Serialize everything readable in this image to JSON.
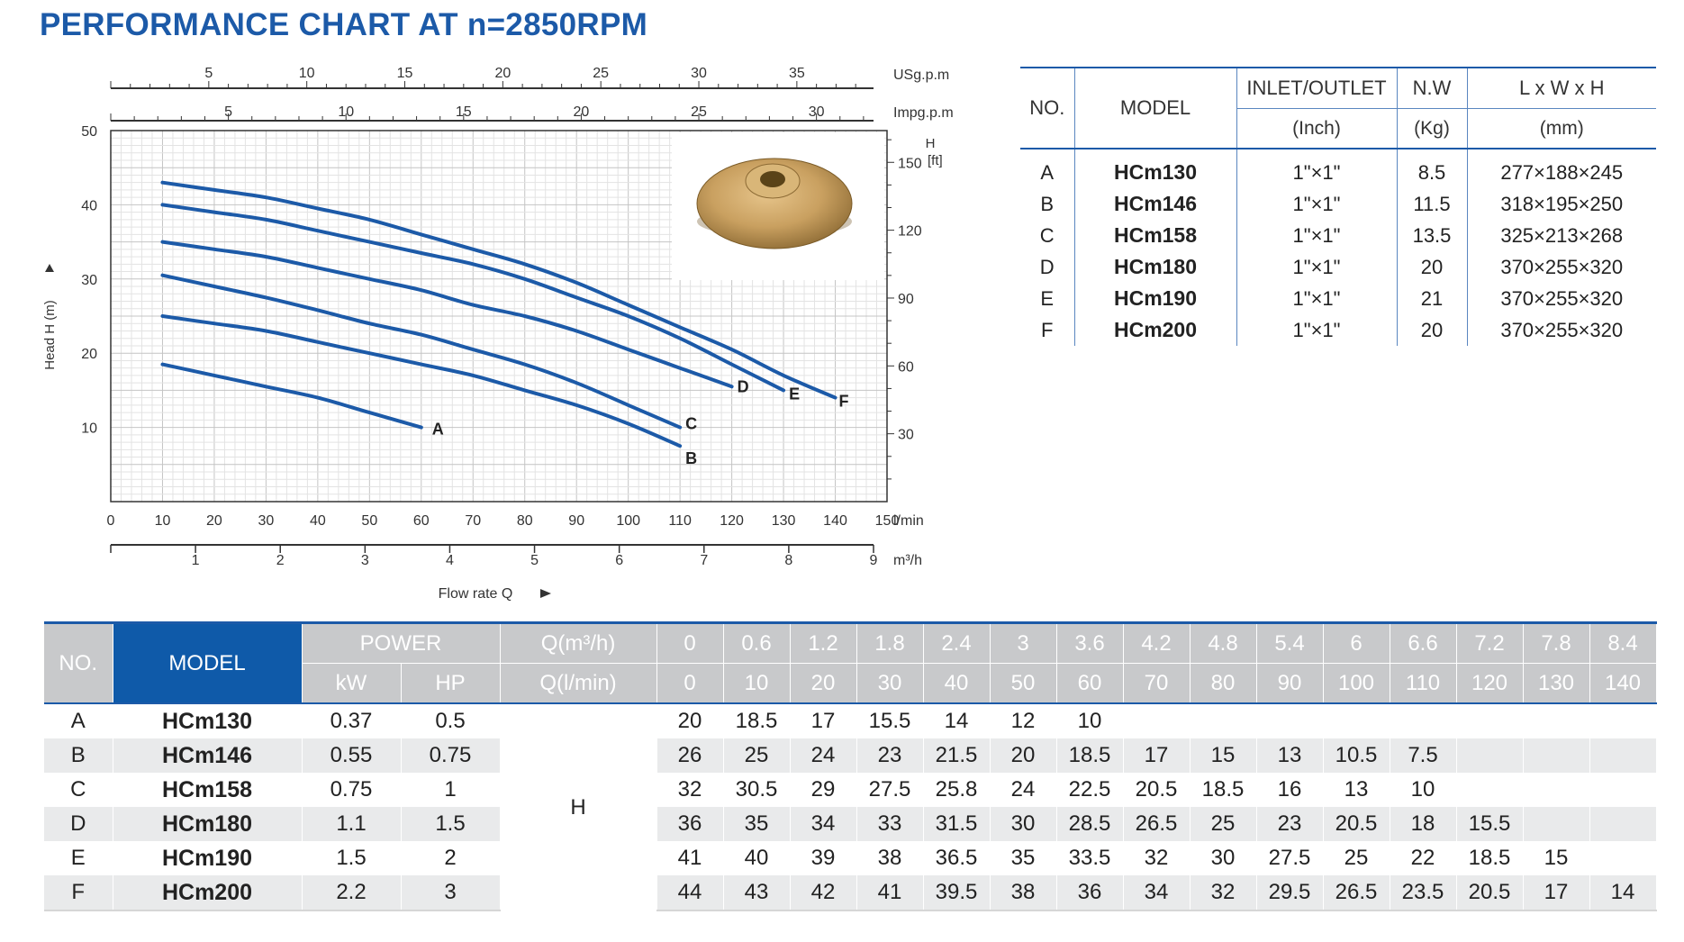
{
  "page_title": "PERFORMANCE CHART AT n=2850RPM",
  "chart_data": {
    "type": "line",
    "x_unit": "l/min",
    "xlim": [
      0,
      150
    ],
    "ylim": [
      0,
      50
    ],
    "x_ticks": [
      "0",
      "10",
      "20",
      "30",
      "40",
      "50",
      "60",
      "70",
      "80",
      "90",
      "100",
      "110",
      "120",
      "130",
      "140",
      "150"
    ],
    "y_ticks": [
      "10",
      "20",
      "30",
      "40",
      "50"
    ],
    "ylabel": "Head H (m)",
    "xlabel": "Flow rate Q",
    "right_axis_title": "H",
    "right_axis_unit": "[ft]",
    "right_ticks": [
      "30",
      "60",
      "90",
      "120",
      "150"
    ],
    "top_axis_us": {
      "unit": "USg.p.m",
      "ticks": [
        "5",
        "10",
        "15",
        "20",
        "25",
        "30",
        "35"
      ]
    },
    "top_axis_imp": {
      "unit": "Impg.p.m",
      "ticks": [
        "5",
        "10",
        "15",
        "20",
        "25",
        "30"
      ]
    },
    "bottom_axis_m3": {
      "unit": "m³/h",
      "ticks": [
        "1",
        "2",
        "3",
        "4",
        "5",
        "6",
        "7",
        "8",
        "9"
      ]
    },
    "curve_color": "#1c5aa8",
    "series": [
      {
        "name": "A",
        "x": [
          10,
          20,
          30,
          40,
          50,
          60
        ],
        "y": [
          18.5,
          17,
          15.5,
          14,
          12,
          10
        ]
      },
      {
        "name": "B",
        "x": [
          10,
          20,
          30,
          40,
          50,
          60,
          70,
          80,
          90,
          100,
          110
        ],
        "y": [
          25,
          24,
          23,
          21.5,
          20,
          18.5,
          17,
          15,
          13,
          10.5,
          7.5
        ]
      },
      {
        "name": "C",
        "x": [
          10,
          20,
          30,
          40,
          50,
          60,
          70,
          80,
          90,
          100,
          110
        ],
        "y": [
          30.5,
          29,
          27.5,
          25.8,
          24,
          22.5,
          20.5,
          18.5,
          16,
          13,
          10
        ]
      },
      {
        "name": "D",
        "x": [
          10,
          20,
          30,
          40,
          50,
          60,
          70,
          80,
          90,
          100,
          110,
          120
        ],
        "y": [
          35,
          34,
          33,
          31.5,
          30,
          28.5,
          26.5,
          25,
          23,
          20.5,
          18,
          15.5
        ]
      },
      {
        "name": "E",
        "x": [
          10,
          20,
          30,
          40,
          50,
          60,
          70,
          80,
          90,
          100,
          110,
          120,
          130
        ],
        "y": [
          40,
          39,
          38,
          36.5,
          35,
          33.5,
          32,
          30,
          27.5,
          25,
          22,
          18.5,
          15
        ]
      },
      {
        "name": "F",
        "x": [
          10,
          20,
          30,
          40,
          50,
          60,
          70,
          80,
          90,
          100,
          110,
          120,
          130,
          140
        ],
        "y": [
          43,
          42,
          41,
          39.5,
          38,
          36,
          34,
          32,
          29.5,
          26.5,
          23.5,
          20.5,
          17,
          14
        ]
      }
    ]
  },
  "spec_table": {
    "headers": {
      "no": "NO.",
      "model": "MODEL",
      "inlet": "INLET/OUTLET",
      "inlet_unit": "(Inch)",
      "nw": "N.W",
      "nw_unit": "(Kg)",
      "dims": "L x W x H",
      "dims_unit": "(mm)"
    },
    "rows": [
      {
        "no": "A",
        "model": "HCm130",
        "inlet": "1\"×1\"",
        "nw": "8.5",
        "dims": "277×188×245"
      },
      {
        "no": "B",
        "model": "HCm146",
        "inlet": "1\"×1\"",
        "nw": "11.5",
        "dims": "318×195×250"
      },
      {
        "no": "C",
        "model": "HCm158",
        "inlet": "1\"×1\"",
        "nw": "13.5",
        "dims": "325×213×268"
      },
      {
        "no": "D",
        "model": "HCm180",
        "inlet": "1\"×1\"",
        "nw": "20",
        "dims": "370×255×320"
      },
      {
        "no": "E",
        "model": "HCm190",
        "inlet": "1\"×1\"",
        "nw": "21",
        "dims": "370×255×320"
      },
      {
        "no": "F",
        "model": "HCm200",
        "inlet": "1\"×1\"",
        "nw": "20",
        "dims": "370×255×320"
      }
    ]
  },
  "perf_table": {
    "h_no": "NO.",
    "h_model": "MODEL",
    "h_power": "POWER",
    "h_kw": "kW",
    "h_hp": "HP",
    "h_q_m3": "Q(m³/h)",
    "h_q_l": "Q(l/min)",
    "h_label": "H",
    "q_m3": [
      "0",
      "0.6",
      "1.2",
      "1.8",
      "2.4",
      "3",
      "3.6",
      "4.2",
      "4.8",
      "5.4",
      "6",
      "6.6",
      "7.2",
      "7.8",
      "8.4"
    ],
    "q_l": [
      "0",
      "10",
      "20",
      "30",
      "40",
      "50",
      "60",
      "70",
      "80",
      "90",
      "100",
      "110",
      "120",
      "130",
      "140"
    ],
    "rows": [
      {
        "no": "A",
        "model": "HCm130",
        "kw": "0.37",
        "hp": "0.5",
        "h": [
          "20",
          "18.5",
          "17",
          "15.5",
          "14",
          "12",
          "10",
          "",
          "",
          "",
          "",
          "",
          "",
          "",
          ""
        ]
      },
      {
        "no": "B",
        "model": "HCm146",
        "kw": "0.55",
        "hp": "0.75",
        "h": [
          "26",
          "25",
          "24",
          "23",
          "21.5",
          "20",
          "18.5",
          "17",
          "15",
          "13",
          "10.5",
          "7.5",
          "",
          "",
          ""
        ]
      },
      {
        "no": "C",
        "model": "HCm158",
        "kw": "0.75",
        "hp": "1",
        "h": [
          "32",
          "30.5",
          "29",
          "27.5",
          "25.8",
          "24",
          "22.5",
          "20.5",
          "18.5",
          "16",
          "13",
          "10",
          "",
          "",
          ""
        ]
      },
      {
        "no": "D",
        "model": "HCm180",
        "kw": "1.1",
        "hp": "1.5",
        "h": [
          "36",
          "35",
          "34",
          "33",
          "31.5",
          "30",
          "28.5",
          "26.5",
          "25",
          "23",
          "20.5",
          "18",
          "15.5",
          "",
          ""
        ]
      },
      {
        "no": "E",
        "model": "HCm190",
        "kw": "1.5",
        "hp": "2",
        "h": [
          "41",
          "40",
          "39",
          "38",
          "36.5",
          "35",
          "33.5",
          "32",
          "30",
          "27.5",
          "25",
          "22",
          "18.5",
          "15",
          ""
        ]
      },
      {
        "no": "F",
        "model": "HCm200",
        "kw": "2.2",
        "hp": "3",
        "h": [
          "44",
          "43",
          "42",
          "41",
          "39.5",
          "38",
          "36",
          "34",
          "32",
          "29.5",
          "26.5",
          "23.5",
          "20.5",
          "17",
          "14"
        ]
      }
    ]
  }
}
